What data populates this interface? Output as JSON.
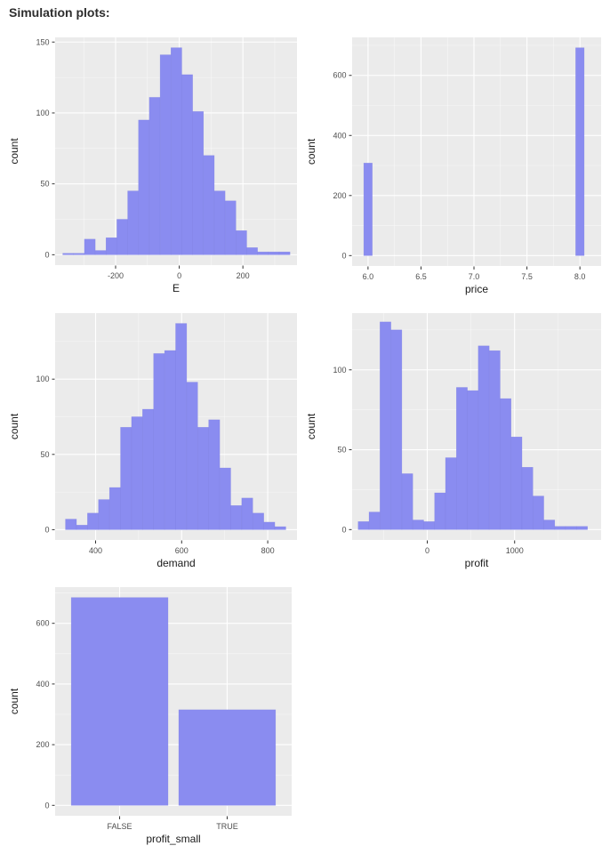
{
  "page": {
    "title": "Simulation plots:"
  },
  "theme": {
    "bar_fill": "#8A8CF0",
    "bar_seam": "#7B7EE0",
    "panel_bg": "#EBEBEB",
    "grid_major": "#FFFFFF",
    "grid_minor": "#F5F5F5",
    "tick_mark_color": "#333333",
    "axis_text_color": "#4D4D4D",
    "axis_title_color": "#1A1A1A"
  },
  "chart_data": [
    {
      "id": "E",
      "type": "bar",
      "subtype": "histogram",
      "xlabel": "E",
      "ylabel": "count",
      "xlim": [
        -390,
        370
      ],
      "ylim": [
        -7.3,
        153.3
      ],
      "x_ticks": [
        {
          "v": -200,
          "label": "-200"
        },
        {
          "v": 0,
          "label": "0"
        },
        {
          "v": 200,
          "label": "200"
        }
      ],
      "x_minor": [
        -300,
        -100,
        100,
        300
      ],
      "y_ticks": [
        {
          "v": 0,
          "label": "0"
        },
        {
          "v": 50,
          "label": "50"
        },
        {
          "v": 100,
          "label": "100"
        },
        {
          "v": 150,
          "label": "150"
        }
      ],
      "y_minor": [
        25,
        75,
        125
      ],
      "bins": {
        "x0": -366,
        "binwidth": 34,
        "counts": [
          1,
          1,
          11,
          3,
          12,
          25,
          45,
          95,
          111,
          141,
          146,
          127,
          101,
          70,
          45,
          38,
          17,
          5,
          2,
          2,
          2
        ]
      }
    },
    {
      "id": "price",
      "type": "bar",
      "subtype": "histogram",
      "xlabel": "price",
      "ylabel": "count",
      "xlim": [
        5.85,
        8.2
      ],
      "ylim": [
        -34.6,
        726.6
      ],
      "x_ticks": [
        {
          "v": 6.0,
          "label": "6.0"
        },
        {
          "v": 6.5,
          "label": "6.5"
        },
        {
          "v": 7.0,
          "label": "7.0"
        },
        {
          "v": 7.5,
          "label": "7.5"
        },
        {
          "v": 8.0,
          "label": "8.0"
        }
      ],
      "x_minor": [
        6.25,
        6.75,
        7.25,
        7.75
      ],
      "y_ticks": [
        {
          "v": 0,
          "label": "0"
        },
        {
          "v": 200,
          "label": "200"
        },
        {
          "v": 400,
          "label": "400"
        },
        {
          "v": 600,
          "label": "600"
        }
      ],
      "y_minor": [
        100,
        300,
        500,
        700
      ],
      "barwidth": 0.08,
      "bars": [
        {
          "x": 6.0,
          "count": 308
        },
        {
          "x": 8.0,
          "count": 692
        }
      ]
    },
    {
      "id": "demand",
      "type": "bar",
      "subtype": "histogram",
      "xlabel": "demand",
      "ylabel": "count",
      "xlim": [
        306,
        868
      ],
      "ylim": [
        -6.85,
        143.85
      ],
      "x_ticks": [
        {
          "v": 400,
          "label": "400"
        },
        {
          "v": 600,
          "label": "600"
        },
        {
          "v": 800,
          "label": "800"
        }
      ],
      "x_minor": [
        500,
        700
      ],
      "y_ticks": [
        {
          "v": 0,
          "label": "0"
        },
        {
          "v": 50,
          "label": "50"
        },
        {
          "v": 100,
          "label": "100"
        }
      ],
      "y_minor": [
        25,
        75,
        125
      ],
      "bins": {
        "x0": 330,
        "binwidth": 25.6,
        "counts": [
          7,
          3,
          11,
          20,
          28,
          68,
          75,
          80,
          117,
          119,
          137,
          98,
          68,
          73,
          41,
          16,
          21,
          11,
          5,
          2
        ]
      }
    },
    {
      "id": "profit",
      "type": "bar",
      "subtype": "histogram",
      "xlabel": "profit",
      "ylabel": "count",
      "xlim": [
        -860,
        1990
      ],
      "ylim": [
        -6.5,
        135.5
      ],
      "x_ticks": [
        {
          "v": 0,
          "label": "0"
        },
        {
          "v": 1000,
          "label": "1000"
        }
      ],
      "x_minor": [
        -500,
        500,
        1500
      ],
      "y_ticks": [
        {
          "v": 0,
          "label": "0"
        },
        {
          "v": 50,
          "label": "50"
        },
        {
          "v": 100,
          "label": "100"
        }
      ],
      "y_minor": [
        25,
        75,
        125
      ],
      "bins": {
        "x0": -791,
        "binwidth": 125,
        "counts": [
          5,
          11,
          130,
          125,
          35,
          6,
          5,
          23,
          45,
          89,
          87,
          115,
          112,
          82,
          58,
          39,
          21,
          6,
          2,
          2,
          2
        ]
      }
    },
    {
      "id": "profit_small",
      "type": "bar",
      "subtype": "categorical",
      "xlabel": "profit_small",
      "ylabel": "count",
      "categories": [
        "FALSE",
        "TRUE"
      ],
      "values": [
        685,
        315
      ],
      "bar_width": 0.9,
      "xlim": [
        0.4,
        2.6
      ],
      "ylim": [
        -34.3,
        719.3
      ],
      "y_ticks": [
        {
          "v": 0,
          "label": "0"
        },
        {
          "v": 200,
          "label": "200"
        },
        {
          "v": 400,
          "label": "400"
        },
        {
          "v": 600,
          "label": "600"
        }
      ],
      "y_minor": [
        100,
        300,
        500,
        700
      ]
    }
  ]
}
